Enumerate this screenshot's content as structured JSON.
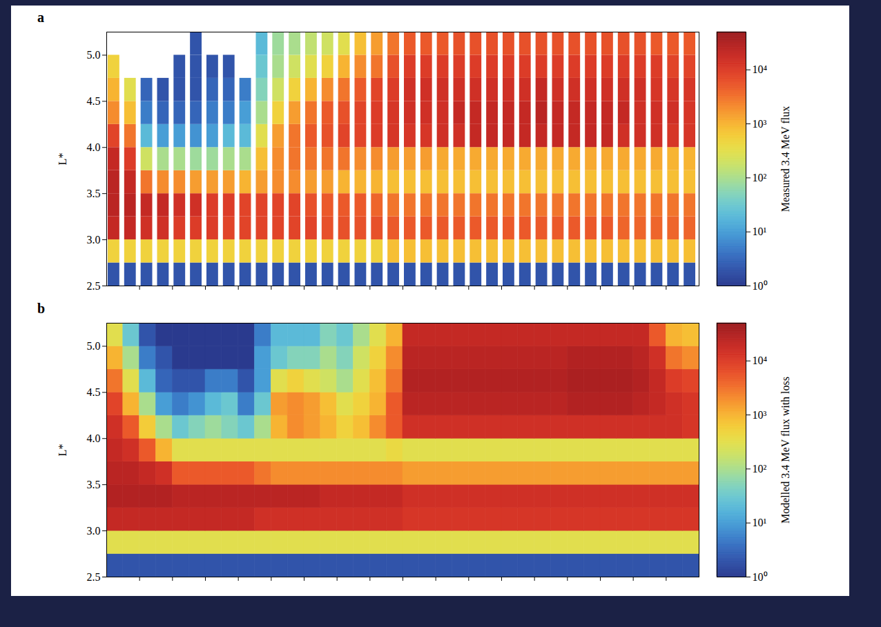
{
  "chart_data": [
    {
      "type": "heatmap",
      "panel_label": "a",
      "y_label": "L*",
      "log": true,
      "tick_labels": "y",
      "xlim": [
        0,
        36
      ],
      "xticks": [
        2,
        4,
        6,
        8,
        10,
        12,
        14,
        16,
        18,
        20,
        22,
        24,
        26,
        28,
        30,
        32,
        34
      ],
      "ylim": [
        2.5,
        5.25
      ],
      "yticks": [
        2.5,
        {
          "value": 3,
          "label": "3.0"
        },
        3.5,
        {
          "value": 4,
          "label": "4.0"
        },
        4.5,
        {
          "value": 5,
          "label": "5.0"
        }
      ],
      "x_bins": [
        0,
        1,
        2,
        3,
        4,
        5,
        6,
        7,
        8,
        9,
        10,
        11,
        12,
        13,
        14,
        15,
        16,
        17,
        18,
        19,
        20,
        21,
        22,
        23,
        24,
        25,
        26,
        27,
        28,
        29,
        30,
        31,
        32,
        33,
        34,
        35,
        36
      ],
      "y_bins": [
        2.5,
        2.75,
        3,
        3.25,
        3.5,
        3.75,
        4,
        4.25,
        4.5,
        4.75,
        5,
        5.25
      ],
      "values": [
        [
          2,
          2,
          2,
          2,
          2,
          2,
          2,
          2,
          2,
          2,
          2,
          2,
          2,
          2,
          2,
          2,
          2,
          2,
          2,
          2,
          2,
          2,
          2,
          2,
          2,
          2,
          2,
          2,
          2,
          2,
          2,
          2,
          2,
          2,
          2,
          2
        ],
        [
          500,
          500,
          500,
          500,
          500,
          500,
          500,
          500,
          500,
          500,
          500,
          500,
          500,
          500,
          500,
          500,
          500,
          800,
          800,
          800,
          800,
          800,
          800,
          800,
          800,
          800,
          800,
          800,
          800,
          800,
          800,
          800,
          800,
          800,
          800,
          800
        ],
        [
          20000,
          20000,
          15000,
          15000,
          10000,
          10000,
          10000,
          8000,
          8000,
          8000,
          8000,
          8000,
          8000,
          6000,
          6000,
          6000,
          6000,
          5000,
          5000,
          5000,
          5000,
          5000,
          5000,
          5000,
          5000,
          5000,
          5000,
          5000,
          5000,
          5000,
          5000,
          4000,
          4000,
          4000,
          4000,
          4000
        ],
        [
          25000,
          25000,
          20000,
          20000,
          15000,
          15000,
          10000,
          10000,
          8000,
          8000,
          8000,
          8000,
          6000,
          5000,
          5000,
          5000,
          4000,
          3000,
          3000,
          3000,
          3000,
          3000,
          3000,
          3000,
          3000,
          3000,
          3000,
          3000,
          3000,
          3000,
          3000,
          3000,
          3000,
          3000,
          3000,
          3000
        ],
        [
          25000,
          20000,
          3000,
          2000,
          2000,
          1500,
          1500,
          1500,
          1000,
          1500,
          2000,
          2000,
          1500,
          1500,
          1000,
          1000,
          1000,
          800,
          800,
          800,
          800,
          800,
          800,
          800,
          800,
          800,
          800,
          800,
          800,
          800,
          800,
          800,
          800,
          800,
          800,
          800
        ],
        [
          20000,
          10000,
          200,
          100,
          100,
          80,
          80,
          100,
          100,
          800,
          2000,
          3000,
          3000,
          3000,
          3000,
          2000,
          2000,
          1500,
          1500,
          1500,
          1200,
          1200,
          1200,
          1200,
          1200,
          1200,
          1200,
          1200,
          1200,
          1200,
          1200,
          1200,
          1200,
          1200,
          1000,
          1000
        ],
        [
          8000,
          3000,
          20,
          10,
          10,
          8,
          10,
          20,
          20,
          300,
          1500,
          3000,
          5000,
          6000,
          8000,
          8000,
          10000,
          12000,
          12000,
          12000,
          15000,
          15000,
          20000,
          20000,
          20000,
          20000,
          20000,
          20000,
          20000,
          20000,
          20000,
          15000,
          15000,
          15000,
          12000,
          12000
        ],
        [
          2000,
          800,
          5,
          3,
          3,
          3,
          5,
          5,
          10,
          100,
          500,
          1500,
          3000,
          5000,
          6000,
          8000,
          10000,
          12000,
          15000,
          15000,
          15000,
          20000,
          20000,
          20000,
          20000,
          20000,
          25000,
          20000,
          20000,
          20000,
          20000,
          20000,
          15000,
          15000,
          15000,
          12000
        ],
        [
          1000,
          300,
          3,
          2,
          2,
          2,
          3,
          3,
          5,
          50,
          200,
          500,
          1000,
          2000,
          3000,
          5000,
          8000,
          10000,
          15000,
          15000,
          15000,
          15000,
          15000,
          15000,
          15000,
          15000,
          20000,
          15000,
          15000,
          15000,
          15000,
          15000,
          15000,
          12000,
          12000,
          12000
        ],
        [
          500,
          null,
          null,
          null,
          2,
          2,
          2,
          2,
          null,
          30,
          100,
          200,
          300,
          500,
          1000,
          2000,
          3000,
          6000,
          10000,
          10000,
          10000,
          10000,
          10000,
          10000,
          10000,
          10000,
          10000,
          10000,
          10000,
          10000,
          10000,
          10000,
          10000,
          10000,
          8000,
          8000
        ],
        [
          null,
          null,
          null,
          null,
          null,
          2,
          null,
          null,
          null,
          20,
          80,
          100,
          150,
          200,
          300,
          800,
          1500,
          3000,
          5000,
          5000,
          5000,
          6000,
          6000,
          6000,
          6000,
          6000,
          6000,
          6000,
          6000,
          6000,
          6000,
          6000,
          6000,
          5000,
          5000,
          5000
        ]
      ],
      "colorbar": {
        "label": "Measured 3.4 MeV flux",
        "range": [
          1,
          50000
        ],
        "ticks": [
          {
            "value": 1,
            "label": "10⁰"
          },
          {
            "value": 10,
            "label": "10¹"
          },
          {
            "value": 100,
            "label": "10²"
          },
          {
            "value": 1000,
            "label": "10³"
          },
          {
            "value": 10000,
            "label": "10⁴"
          }
        ]
      }
    },
    {
      "type": "heatmap",
      "panel_label": "b",
      "y_label": "L*",
      "log": true,
      "tick_labels": "y",
      "xlim": [
        0,
        36
      ],
      "xticks": [
        2,
        4,
        6,
        8,
        10,
        12,
        14,
        16,
        18,
        20,
        22,
        24,
        26,
        28,
        30,
        32,
        34
      ],
      "ylim": [
        2.5,
        5.25
      ],
      "yticks": [
        2.5,
        {
          "value": 3,
          "label": "3.0"
        },
        3.5,
        {
          "value": 4,
          "label": "4.0"
        },
        4.5,
        {
          "value": 5,
          "label": "5.0"
        }
      ],
      "x_bins": [
        0,
        1,
        2,
        3,
        4,
        5,
        6,
        7,
        8,
        9,
        10,
        11,
        12,
        13,
        14,
        15,
        16,
        17,
        18,
        19,
        20,
        21,
        22,
        23,
        24,
        25,
        26,
        27,
        28,
        29,
        30,
        31,
        32,
        33,
        34,
        35,
        36
      ],
      "y_bins": [
        2.5,
        2.75,
        3,
        3.25,
        3.5,
        3.75,
        4,
        4.25,
        4.5,
        4.75,
        5,
        5.25
      ],
      "values": [
        [
          2,
          2,
          2,
          2,
          2,
          2,
          2,
          2,
          2,
          2,
          2,
          2,
          2,
          2,
          2,
          2,
          2,
          2,
          2,
          2,
          2,
          2,
          2,
          2,
          2,
          2,
          2,
          2,
          2,
          2,
          2,
          2,
          2,
          2,
          2,
          2
        ],
        [
          300,
          300,
          300,
          300,
          300,
          300,
          300,
          300,
          300,
          300,
          300,
          300,
          300,
          300,
          300,
          300,
          300,
          300,
          300,
          300,
          300,
          300,
          300,
          300,
          300,
          300,
          300,
          300,
          300,
          300,
          300,
          300,
          300,
          300,
          300,
          300
        ],
        [
          20000,
          20000,
          20000,
          20000,
          20000,
          20000,
          20000,
          20000,
          20000,
          15000,
          15000,
          15000,
          15000,
          15000,
          15000,
          15000,
          15000,
          15000,
          12000,
          12000,
          12000,
          12000,
          12000,
          12000,
          12000,
          12000,
          12000,
          12000,
          12000,
          12000,
          12000,
          12000,
          12000,
          12000,
          12000,
          12000
        ],
        [
          30000,
          30000,
          30000,
          30000,
          25000,
          25000,
          25000,
          25000,
          25000,
          25000,
          25000,
          25000,
          25000,
          20000,
          20000,
          20000,
          20000,
          20000,
          15000,
          15000,
          15000,
          15000,
          15000,
          15000,
          15000,
          15000,
          15000,
          15000,
          15000,
          15000,
          15000,
          15000,
          15000,
          15000,
          15000,
          15000
        ],
        [
          25000,
          25000,
          20000,
          15000,
          5000,
          5000,
          5000,
          5000,
          5000,
          3000,
          2000,
          2000,
          2000,
          2000,
          2000,
          2000,
          2000,
          2000,
          1500,
          1500,
          1500,
          1500,
          1500,
          1500,
          1500,
          1500,
          1500,
          1500,
          1500,
          1500,
          1500,
          1500,
          1500,
          1500,
          1500,
          1500
        ],
        [
          20000,
          15000,
          5000,
          1000,
          300,
          300,
          300,
          300,
          300,
          300,
          300,
          300,
          300,
          300,
          300,
          300,
          300,
          400,
          300,
          300,
          300,
          300,
          300,
          300,
          300,
          300,
          300,
          300,
          300,
          300,
          300,
          300,
          300,
          300,
          300,
          300
        ],
        [
          15000,
          5000,
          600,
          100,
          30,
          50,
          80,
          50,
          30,
          100,
          1000,
          2000,
          1500,
          1000,
          500,
          800,
          2000,
          5000,
          15000,
          15000,
          15000,
          15000,
          15000,
          15000,
          15000,
          15000,
          15000,
          15000,
          15000,
          15000,
          15000,
          15000,
          15000,
          15000,
          15000,
          12000
        ],
        [
          8000,
          1000,
          100,
          10,
          5,
          8,
          20,
          30,
          5,
          30,
          1500,
          2000,
          1500,
          800,
          300,
          500,
          1000,
          5000,
          25000,
          25000,
          25000,
          25000,
          25000,
          25000,
          25000,
          25000,
          25000,
          25000,
          30000,
          30000,
          30000,
          30000,
          25000,
          20000,
          15000,
          12000
        ],
        [
          3000,
          300,
          20,
          3,
          2,
          2,
          5,
          5,
          2,
          10,
          300,
          500,
          300,
          200,
          100,
          300,
          800,
          3000,
          30000,
          30000,
          30000,
          30000,
          30000,
          30000,
          30000,
          30000,
          30000,
          30000,
          35000,
          35000,
          35000,
          35000,
          30000,
          20000,
          10000,
          8000
        ],
        [
          1000,
          100,
          5,
          2,
          1,
          1,
          1,
          1,
          1,
          10,
          30,
          50,
          50,
          100,
          50,
          200,
          500,
          2000,
          25000,
          25000,
          25000,
          25000,
          25000,
          25000,
          25000,
          25000,
          25000,
          25000,
          30000,
          30000,
          30000,
          30000,
          25000,
          15000,
          3000,
          2000
        ],
        [
          300,
          30,
          2,
          1,
          1,
          1,
          1,
          1,
          1,
          5,
          20,
          20,
          20,
          50,
          30,
          100,
          300,
          1000,
          20000,
          20000,
          20000,
          20000,
          20000,
          20000,
          20000,
          20000,
          20000,
          20000,
          20000,
          20000,
          20000,
          20000,
          20000,
          5000,
          1000,
          800
        ]
      ],
      "colorbar": {
        "label": "Modelled 3.4 MeV flux with loss",
        "range": [
          1,
          50000
        ],
        "ticks": [
          {
            "value": 1,
            "label": "10⁰"
          },
          {
            "value": 10,
            "label": "10¹"
          },
          {
            "value": 100,
            "label": "10²"
          },
          {
            "value": 1000,
            "label": "10³"
          },
          {
            "value": 10000,
            "label": "10⁴"
          }
        ]
      }
    }
  ]
}
